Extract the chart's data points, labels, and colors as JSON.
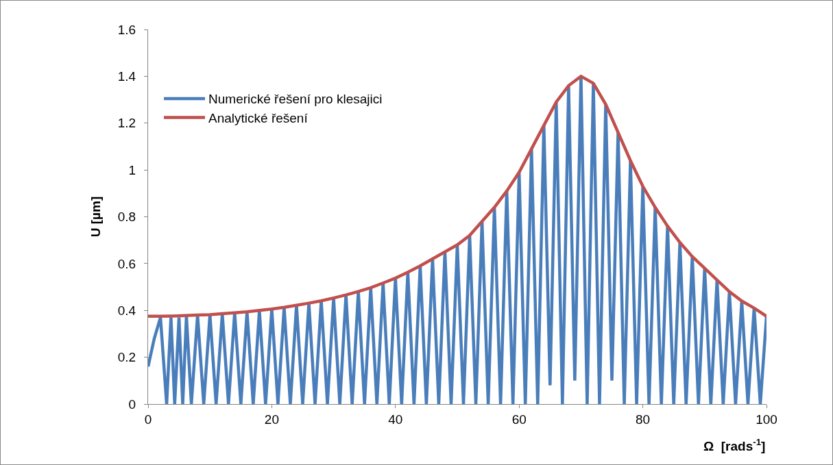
{
  "chart_data": {
    "type": "line",
    "xlabel": "Ω  [rads$^{-1}$]",
    "ylabel": "U [µm]",
    "xlim": [
      0,
      100
    ],
    "xticks": [
      0,
      20,
      40,
      60,
      80,
      100
    ],
    "ylim": [
      0,
      1.6
    ],
    "yticks": [
      0,
      0.2,
      0.4,
      0.6,
      0.8,
      1,
      1.2,
      1.4,
      1.6
    ],
    "grid": false,
    "legend": "left",
    "marker": "none",
    "line_style": "solid",
    "series": [
      {
        "name": "Numerické řešení pro klesajici",
        "color": "#4a7ebb",
        "x": [
          0,
          1,
          2,
          3,
          3.7,
          4.3,
          5,
          5.6,
          6.2,
          7,
          8,
          9,
          10,
          11,
          12,
          13,
          14,
          15,
          16,
          17,
          18,
          19,
          20,
          21,
          22,
          23,
          24,
          25,
          26,
          27,
          28,
          29,
          30,
          31,
          32,
          33,
          34,
          35,
          36,
          37,
          38,
          39,
          40,
          41,
          42,
          43,
          44,
          45,
          46,
          47,
          48,
          49,
          50,
          51,
          52,
          53,
          54,
          55,
          56,
          57,
          58,
          59,
          60,
          61,
          62,
          63,
          64,
          65,
          66,
          67,
          68,
          69,
          70,
          71,
          72,
          73,
          74,
          75,
          76,
          77,
          78,
          79,
          80,
          81,
          82,
          83,
          84,
          85,
          86,
          87,
          88,
          89,
          90,
          91,
          92,
          93,
          94,
          95,
          96,
          97,
          98,
          99,
          100
        ],
        "values": [
          0.16,
          0.28,
          0.37,
          0,
          0.37,
          0,
          0.37,
          0,
          0.375,
          0,
          0.38,
          0,
          0.382,
          0,
          0.386,
          0,
          0.39,
          0,
          0.394,
          0,
          0.4,
          0,
          0.406,
          0,
          0.413,
          0,
          0.422,
          0,
          0.431,
          0,
          0.441,
          0,
          0.453,
          0,
          0.466,
          0,
          0.481,
          0,
          0.497,
          0,
          0.517,
          0,
          0.538,
          0,
          0.563,
          0,
          0.59,
          0,
          0.62,
          0,
          0.65,
          0,
          0.68,
          0,
          0.72,
          0,
          0.78,
          0,
          0.84,
          0,
          0.91,
          0,
          0.99,
          0,
          1.09,
          0,
          1.19,
          0.08,
          1.29,
          0,
          1.36,
          0.1,
          1.4,
          0,
          1.37,
          0,
          1.28,
          0.1,
          1.16,
          0,
          1.04,
          0,
          0.93,
          0,
          0.84,
          0,
          0.76,
          0,
          0.69,
          0,
          0.63,
          0,
          0.58,
          0,
          0.53,
          0,
          0.48,
          0,
          0.44,
          0,
          0.41,
          0,
          0.375
        ]
      },
      {
        "name": "Analytické řešení",
        "color": "#c0504d",
        "x": [
          0,
          2,
          4,
          6,
          8,
          10,
          12,
          14,
          16,
          18,
          20,
          22,
          24,
          26,
          28,
          30,
          32,
          34,
          36,
          38,
          40,
          42,
          44,
          46,
          48,
          50,
          52,
          54,
          56,
          58,
          60,
          62,
          64,
          66,
          68,
          70,
          72,
          74,
          76,
          78,
          80,
          82,
          84,
          86,
          88,
          90,
          92,
          94,
          96,
          98,
          100
        ],
        "values": [
          0.375,
          0.375,
          0.376,
          0.378,
          0.38,
          0.382,
          0.386,
          0.39,
          0.394,
          0.4,
          0.406,
          0.413,
          0.422,
          0.431,
          0.441,
          0.453,
          0.466,
          0.481,
          0.497,
          0.517,
          0.538,
          0.563,
          0.59,
          0.62,
          0.65,
          0.68,
          0.72,
          0.78,
          0.84,
          0.91,
          0.99,
          1.09,
          1.19,
          1.29,
          1.36,
          1.4,
          1.37,
          1.28,
          1.16,
          1.04,
          0.93,
          0.84,
          0.76,
          0.69,
          0.63,
          0.58,
          0.53,
          0.48,
          0.44,
          0.41,
          0.375
        ]
      }
    ]
  }
}
